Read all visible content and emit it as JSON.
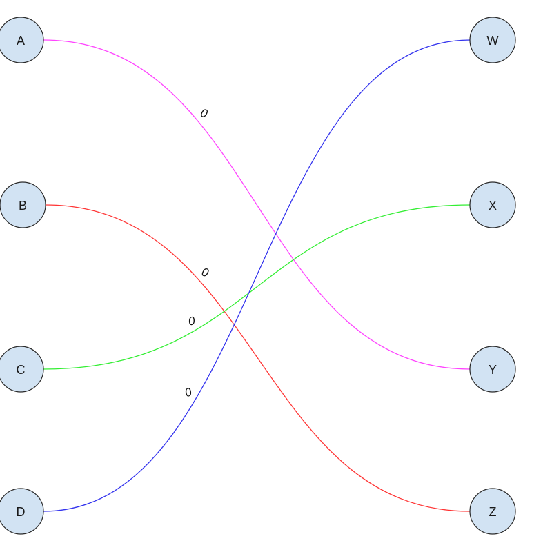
{
  "diagram": {
    "nodes": [
      {
        "id": "A",
        "label": "A"
      },
      {
        "id": "B",
        "label": "B"
      },
      {
        "id": "C",
        "label": "C"
      },
      {
        "id": "D",
        "label": "D"
      },
      {
        "id": "W",
        "label": "W"
      },
      {
        "id": "X",
        "label": "X"
      },
      {
        "id": "Y",
        "label": "Y"
      },
      {
        "id": "Z",
        "label": "Z"
      }
    ],
    "edges": [
      {
        "from": "A",
        "to": "Y",
        "label": "0",
        "color": "#ff44ff"
      },
      {
        "from": "B",
        "to": "Z",
        "label": "0",
        "color": "#ff3333"
      },
      {
        "from": "C",
        "to": "X",
        "label": "0",
        "color": "#33ee33"
      },
      {
        "from": "D",
        "to": "W",
        "label": "0",
        "color": "#3333ee"
      }
    ]
  }
}
